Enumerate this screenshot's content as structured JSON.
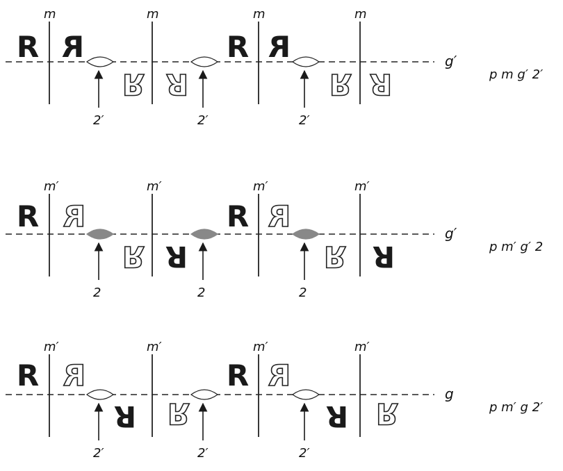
{
  "glyph": "R",
  "colors": {
    "ink": "#1a1a1a",
    "filled_axis": "#888888"
  },
  "rows": [
    {
      "mirror_label": "m",
      "glide_label": "g′",
      "axis_label": "2′",
      "group_label": "p m g′ 2′",
      "axis_filled": false,
      "motif_styles": [
        "solid",
        "solid",
        "outline",
        "outline"
      ]
    },
    {
      "mirror_label": "m′",
      "glide_label": "g′",
      "axis_label": "2",
      "group_label": "p m′ g′ 2",
      "axis_filled": true,
      "motif_styles": [
        "solid",
        "outline",
        "outline",
        "solid"
      ]
    },
    {
      "mirror_label": "m′",
      "glide_label": "g",
      "axis_label": "2′",
      "group_label": "p m′ g 2′",
      "axis_filled": false,
      "motif_styles": [
        "solid",
        "outline",
        "solid",
        "outline"
      ]
    }
  ]
}
